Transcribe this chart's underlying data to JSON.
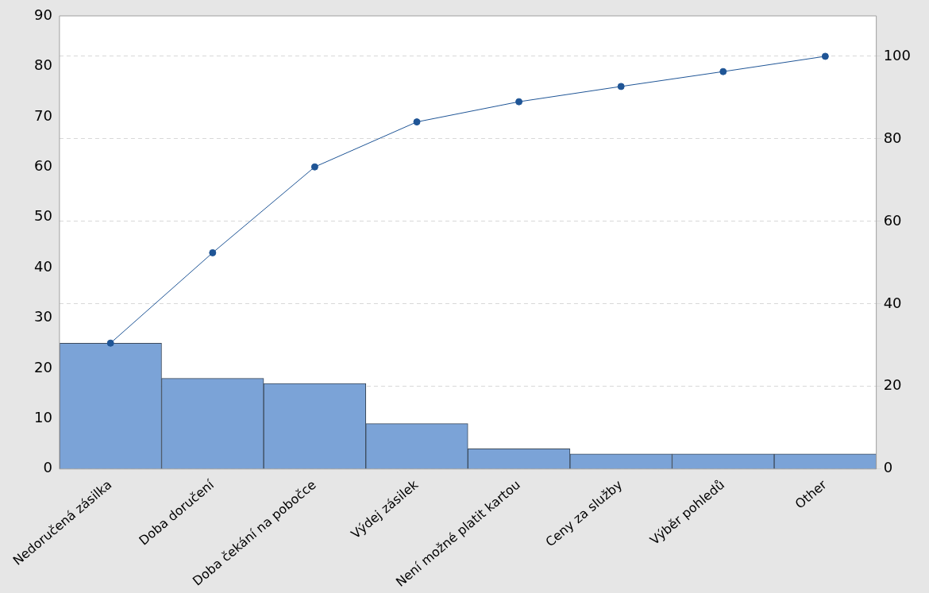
{
  "chart_data": {
    "type": "bar",
    "categories": [
      "Nedoručená zásilka",
      "Doba doručení",
      "Doba čekání na pobočce",
      "Výdej zásilek",
      "Není možné platit kartou",
      "Ceny za služby",
      "Výběr pohledů",
      "Other"
    ],
    "series": [
      {
        "color": "#7ba3d7",
        "values": [
          25,
          18,
          17,
          9,
          4,
          3,
          3,
          3
        ]
      },
      {
        "type": "line",
        "axis": "y2",
        "color": "#1f5596",
        "marker": "circle",
        "values": [
          30.5,
          52.4,
          73.2,
          84.1,
          89.0,
          92.7,
          96.3,
          100
        ]
      }
    ],
    "ylim": [
      0,
      90
    ],
    "yticks": [
      0,
      10,
      20,
      30,
      40,
      50,
      60,
      70,
      80,
      90
    ],
    "y2lim": [
      0,
      109.8
    ],
    "y2ticks": [
      0,
      20,
      40,
      60,
      80,
      100
    ],
    "grid": "y",
    "legend": false
  }
}
